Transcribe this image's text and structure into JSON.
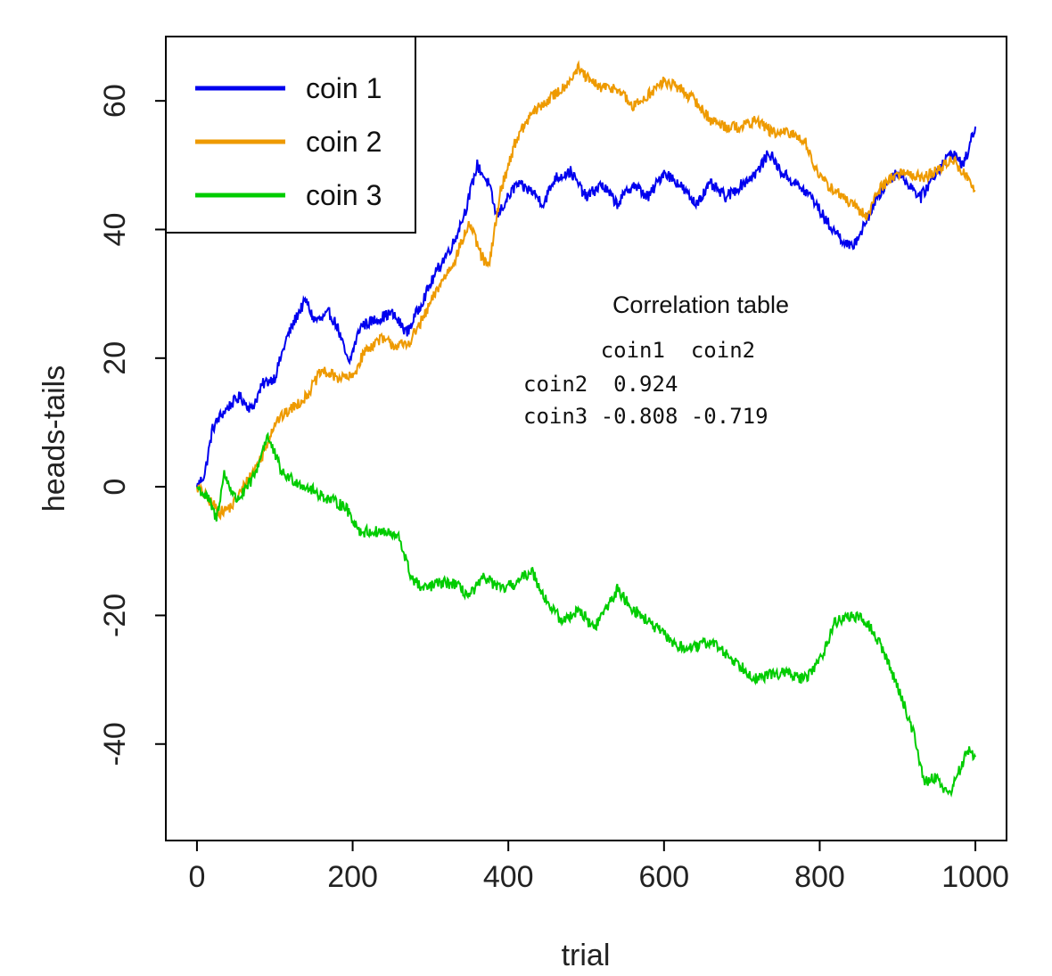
{
  "chart_data": {
    "type": "line",
    "title": "",
    "xlabel": "trial",
    "ylabel": "heads-tails",
    "xlim": [
      -40,
      1040
    ],
    "ylim": [
      -55,
      70
    ],
    "xticks": [
      0,
      200,
      400,
      600,
      800,
      1000
    ],
    "yticks": [
      -40,
      -20,
      0,
      20,
      40,
      60
    ],
    "legend_position": "top-left",
    "series": [
      {
        "name": "coin 1",
        "color": "#0000ee",
        "anchors": [
          [
            0,
            0
          ],
          [
            10,
            2
          ],
          [
            20,
            9
          ],
          [
            30,
            11
          ],
          [
            45,
            13
          ],
          [
            55,
            14
          ],
          [
            70,
            12
          ],
          [
            85,
            16
          ],
          [
            100,
            17
          ],
          [
            115,
            23
          ],
          [
            130,
            27
          ],
          [
            140,
            29
          ],
          [
            150,
            26
          ],
          [
            160,
            26
          ],
          [
            170,
            27
          ],
          [
            180,
            25
          ],
          [
            195,
            19
          ],
          [
            210,
            25
          ],
          [
            230,
            26
          ],
          [
            250,
            27
          ],
          [
            270,
            24
          ],
          [
            290,
            29
          ],
          [
            310,
            34
          ],
          [
            330,
            38
          ],
          [
            345,
            43
          ],
          [
            360,
            50
          ],
          [
            375,
            47
          ],
          [
            385,
            42
          ],
          [
            395,
            44
          ],
          [
            410,
            47
          ],
          [
            430,
            46
          ],
          [
            445,
            44
          ],
          [
            460,
            48
          ],
          [
            480,
            49
          ],
          [
            500,
            45
          ],
          [
            520,
            47
          ],
          [
            540,
            44
          ],
          [
            560,
            47
          ],
          [
            580,
            45
          ],
          [
            600,
            49
          ],
          [
            620,
            47
          ],
          [
            640,
            44
          ],
          [
            660,
            47
          ],
          [
            680,
            45
          ],
          [
            700,
            47
          ],
          [
            720,
            49
          ],
          [
            735,
            52
          ],
          [
            750,
            49
          ],
          [
            770,
            47
          ],
          [
            790,
            45
          ],
          [
            810,
            41
          ],
          [
            825,
            39
          ],
          [
            840,
            37
          ],
          [
            855,
            40
          ],
          [
            870,
            44
          ],
          [
            885,
            47
          ],
          [
            900,
            49
          ],
          [
            915,
            47
          ],
          [
            930,
            45
          ],
          [
            950,
            49
          ],
          [
            970,
            52
          ],
          [
            985,
            50
          ],
          [
            1000,
            56
          ]
        ],
        "noise": 0.9
      },
      {
        "name": "coin 2",
        "color": "#ee9a00",
        "anchors": [
          [
            0,
            0
          ],
          [
            15,
            -2
          ],
          [
            30,
            -4
          ],
          [
            45,
            -3
          ],
          [
            60,
            0
          ],
          [
            75,
            3
          ],
          [
            85,
            5
          ],
          [
            100,
            10
          ],
          [
            120,
            12
          ],
          [
            140,
            14
          ],
          [
            160,
            18
          ],
          [
            180,
            17
          ],
          [
            200,
            17
          ],
          [
            215,
            21
          ],
          [
            235,
            23
          ],
          [
            255,
            22
          ],
          [
            270,
            22
          ],
          [
            290,
            26
          ],
          [
            310,
            31
          ],
          [
            330,
            35
          ],
          [
            350,
            41
          ],
          [
            365,
            36
          ],
          [
            375,
            34
          ],
          [
            390,
            46
          ],
          [
            410,
            54
          ],
          [
            430,
            58
          ],
          [
            450,
            60
          ],
          [
            470,
            62
          ],
          [
            490,
            65
          ],
          [
            505,
            63
          ],
          [
            520,
            62
          ],
          [
            540,
            62
          ],
          [
            560,
            59
          ],
          [
            580,
            61
          ],
          [
            600,
            63
          ],
          [
            620,
            62
          ],
          [
            640,
            60
          ],
          [
            660,
            57
          ],
          [
            680,
            56
          ],
          [
            700,
            56
          ],
          [
            720,
            57
          ],
          [
            740,
            55
          ],
          [
            760,
            55
          ],
          [
            780,
            54
          ],
          [
            800,
            48
          ],
          [
            820,
            46
          ],
          [
            840,
            44
          ],
          [
            860,
            42
          ],
          [
            875,
            46
          ],
          [
            890,
            48
          ],
          [
            910,
            49
          ],
          [
            930,
            48
          ],
          [
            950,
            49
          ],
          [
            970,
            51
          ],
          [
            990,
            48
          ],
          [
            1000,
            46
          ]
        ],
        "noise": 0.9
      },
      {
        "name": "coin 3",
        "color": "#00cc00",
        "anchors": [
          [
            0,
            0
          ],
          [
            15,
            -2
          ],
          [
            25,
            -5
          ],
          [
            35,
            2
          ],
          [
            50,
            -2
          ],
          [
            60,
            -1
          ],
          [
            75,
            2
          ],
          [
            90,
            8
          ],
          [
            110,
            2
          ],
          [
            140,
            0
          ],
          [
            170,
            -2
          ],
          [
            190,
            -3
          ],
          [
            210,
            -7
          ],
          [
            240,
            -7
          ],
          [
            260,
            -8
          ],
          [
            275,
            -14
          ],
          [
            290,
            -16
          ],
          [
            310,
            -15
          ],
          [
            330,
            -15
          ],
          [
            350,
            -17
          ],
          [
            370,
            -14
          ],
          [
            390,
            -16
          ],
          [
            410,
            -15
          ],
          [
            430,
            -13
          ],
          [
            450,
            -18
          ],
          [
            470,
            -21
          ],
          [
            490,
            -19
          ],
          [
            510,
            -22
          ],
          [
            540,
            -16
          ],
          [
            560,
            -19
          ],
          [
            580,
            -21
          ],
          [
            600,
            -23
          ],
          [
            620,
            -25
          ],
          [
            640,
            -25
          ],
          [
            660,
            -24
          ],
          [
            680,
            -26
          ],
          [
            700,
            -28
          ],
          [
            720,
            -30
          ],
          [
            740,
            -29
          ],
          [
            760,
            -29
          ],
          [
            780,
            -30
          ],
          [
            800,
            -27
          ],
          [
            820,
            -21
          ],
          [
            840,
            -20
          ],
          [
            860,
            -21
          ],
          [
            880,
            -25
          ],
          [
            900,
            -31
          ],
          [
            920,
            -38
          ],
          [
            935,
            -46
          ],
          [
            950,
            -45
          ],
          [
            965,
            -48
          ],
          [
            980,
            -44
          ],
          [
            990,
            -41
          ],
          [
            1000,
            -42
          ]
        ],
        "noise": 0.9
      }
    ],
    "annotation": {
      "title": "Correlation table",
      "header": "      coin1  coin2",
      "rows": [
        "coin2  0.924",
        "coin3 -0.808 -0.719"
      ]
    }
  }
}
